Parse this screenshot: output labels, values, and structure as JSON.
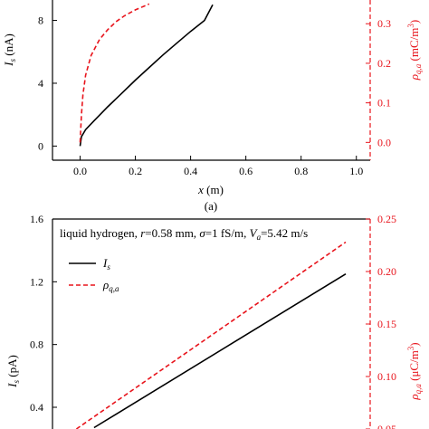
{
  "figure": {
    "panel_a_label": "(a)"
  },
  "colors": {
    "black_series": "#000000",
    "red_series": "#e8141c",
    "axis": "#000000"
  },
  "chart_data": [
    {
      "type": "line",
      "panel": "a",
      "xlabel": "x (m)",
      "ylabel_left": "I_s (nA)",
      "ylabel_right": "ρ_q,a (mC/m³)",
      "xlim": [
        -0.1,
        1.05
      ],
      "ylim_left": [
        -0.9,
        9.3
      ],
      "ylim_right": [
        -0.045,
        0.36
      ],
      "x_ticks": [
        "0.0",
        "0.2",
        "0.4",
        "0.6",
        "0.8",
        "1.0"
      ],
      "x_tick_values": [
        0,
        0.2,
        0.4,
        0.6,
        0.8,
        1.0
      ],
      "y_ticks_left": [
        "0",
        "4",
        "8"
      ],
      "y_tick_values_left": [
        0,
        4,
        8
      ],
      "y_ticks_right": [
        "0.0",
        "0.1",
        "0.2",
        "0.3"
      ],
      "y_tick_values_right": [
        0,
        0.1,
        0.2,
        0.3
      ],
      "grid": false,
      "series": [
        {
          "axis": "left",
          "style": "solid",
          "color": "#000000",
          "x": [
            0.0,
            0.005,
            0.02,
            0.05,
            0.1,
            0.15,
            0.2,
            0.25,
            0.3,
            0.35,
            0.4,
            0.45,
            0.48
          ],
          "y": [
            0.0,
            0.6,
            1.05,
            1.6,
            2.5,
            3.35,
            4.2,
            5.0,
            5.8,
            6.55,
            7.3,
            8.0,
            9.0
          ]
        },
        {
          "axis": "right",
          "style": "dashed",
          "color": "#e8141c",
          "x": [
            0.0,
            0.005,
            0.01,
            0.02,
            0.04,
            0.07,
            0.1,
            0.13,
            0.16,
            0.2,
            0.25
          ],
          "y": [
            0.0,
            0.07,
            0.12,
            0.17,
            0.22,
            0.26,
            0.285,
            0.305,
            0.32,
            0.335,
            0.35
          ]
        }
      ]
    },
    {
      "type": "line",
      "panel": "b",
      "annotation": "liquid hydrogen, r=0.58 mm, σ=1 fS/m, V_a=5.42 m/s",
      "ylabel_left": "I_s (pA)",
      "ylabel_right": "ρ_q,a (μC/m³)",
      "ylim_left": [
        0.26,
        1.6
      ],
      "ylim_right": [
        0.05,
        0.25
      ],
      "y_ticks_left": [
        "0.4",
        "0.8",
        "1.2",
        "1.6"
      ],
      "y_tick_values_left": [
        0.4,
        0.8,
        1.2,
        1.6
      ],
      "y_ticks_right": [
        "0.05",
        "0.10",
        "0.15",
        "0.20",
        "0.25"
      ],
      "y_tick_values_right": [
        0.05,
        0.1,
        0.15,
        0.2,
        0.25
      ],
      "grid": false,
      "legend": {
        "placement": "top-left",
        "entries": [
          {
            "label": "I_s",
            "style": "solid",
            "color": "#000000"
          },
          {
            "label": "ρ_q,a",
            "style": "dashed",
            "color": "#e8141c"
          }
        ]
      },
      "series": [
        {
          "name": "I_s",
          "axis": "left",
          "style": "solid",
          "color": "#000000",
          "x": [
            0.0,
            1.0
          ],
          "y": [
            0.27,
            1.25
          ]
        },
        {
          "name": "ρ_q,a",
          "axis": "right",
          "style": "dashed",
          "color": "#e8141c",
          "x": [
            -0.07,
            1.0
          ],
          "y": [
            0.05,
            0.228
          ]
        }
      ]
    }
  ]
}
